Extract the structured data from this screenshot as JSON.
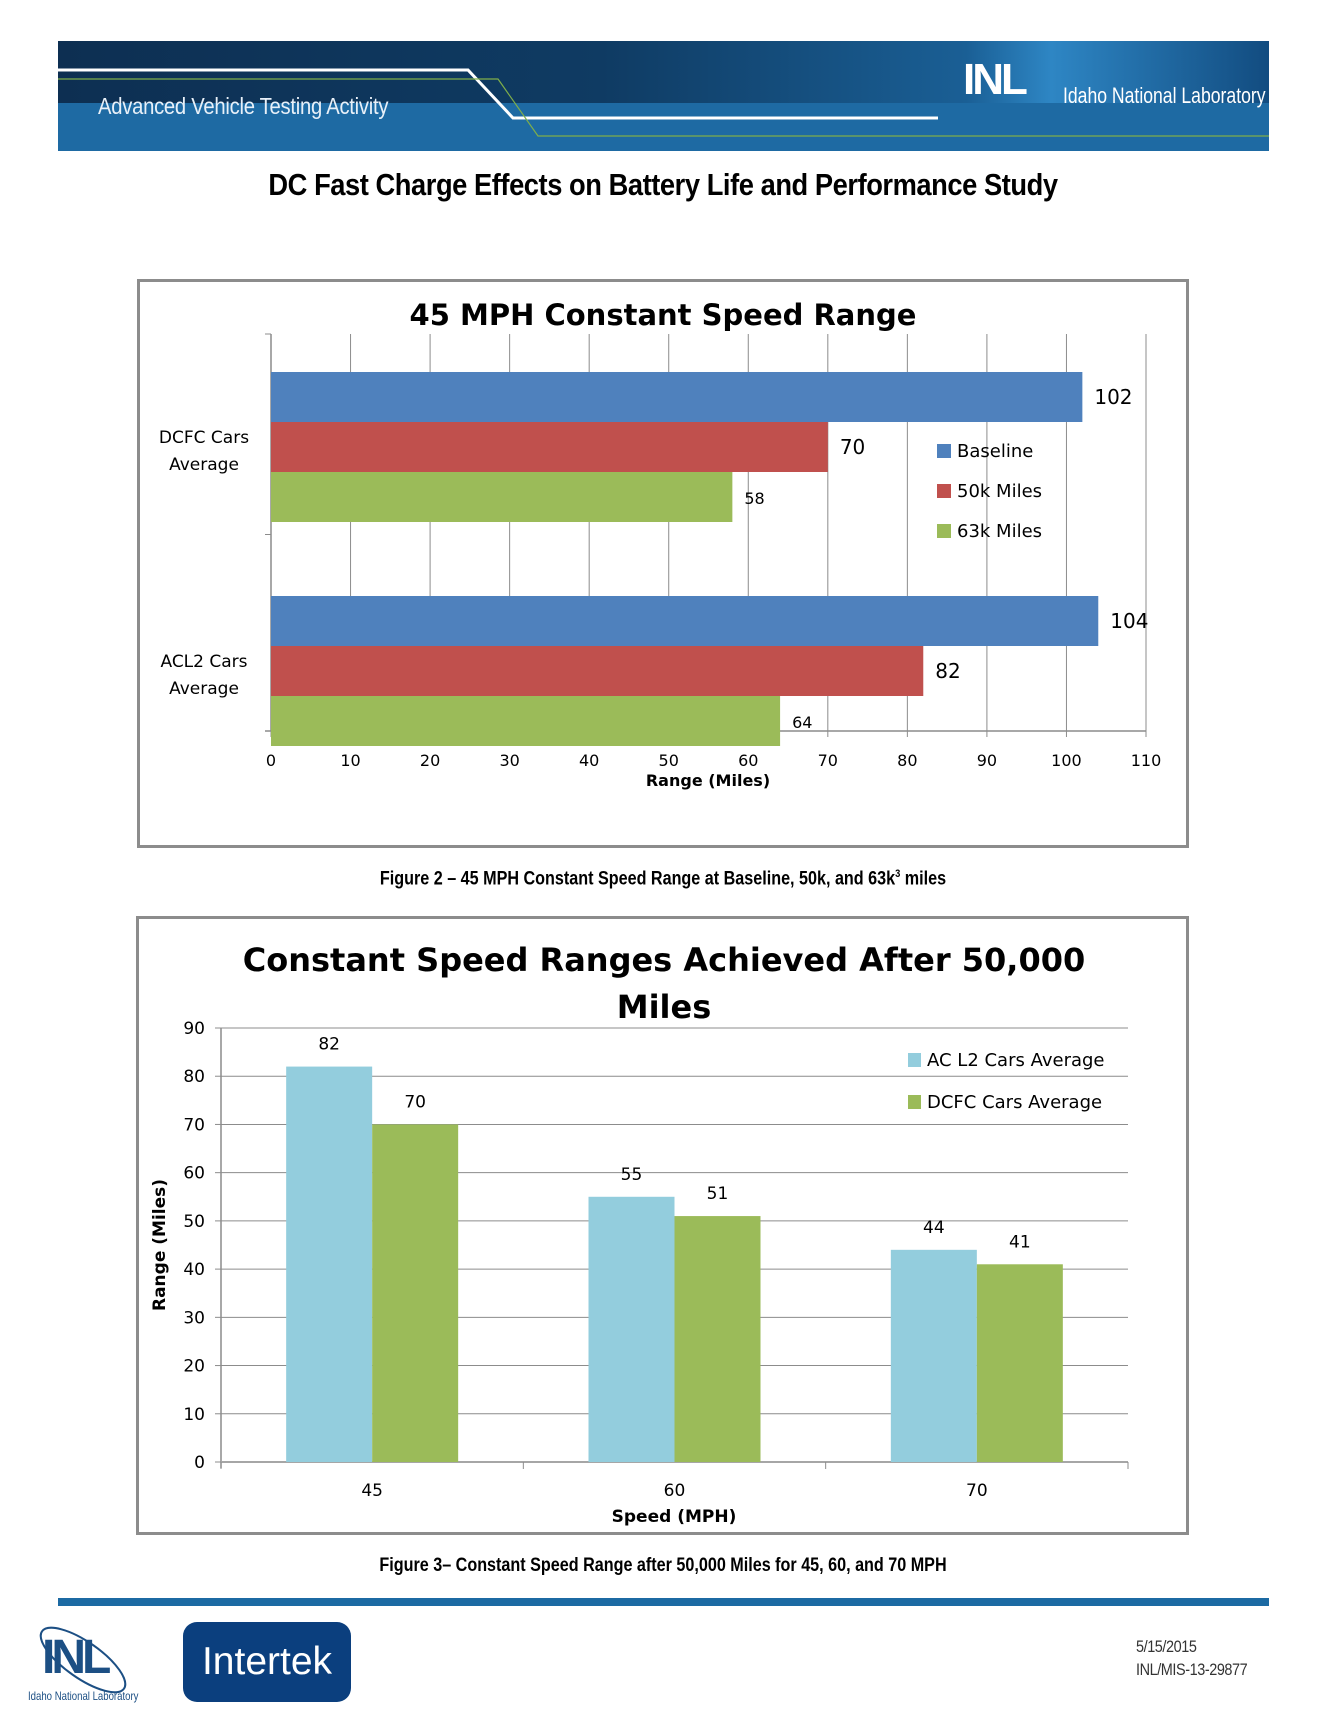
{
  "header": {
    "program": "Advanced Vehicle Testing Activity",
    "logo_text": "INL",
    "org": "Idaho National Laboratory"
  },
  "document_title": "DC Fast Charge Effects on Battery Life and Performance Study",
  "chart_data": [
    {
      "type": "bar",
      "orientation": "horizontal",
      "title": "45 MPH Constant Speed Range",
      "xlabel": "Range (Miles)",
      "ylabel": "",
      "categories": [
        "DCFC Cars Average",
        "ACL2 Cars Average"
      ],
      "category_lines": [
        [
          "DCFC Cars",
          "Average"
        ],
        [
          "ACL2 Cars",
          "Average"
        ]
      ],
      "series": [
        {
          "name": "Baseline",
          "color": "#4f81bd",
          "values": [
            102,
            104
          ]
        },
        {
          "name": "50k Miles",
          "color": "#c0504d",
          "values": [
            70,
            82
          ]
        },
        {
          "name": "63k Miles",
          "color": "#9bbb59",
          "values": [
            58,
            64
          ]
        }
      ],
      "xlim": [
        0,
        110
      ],
      "xticks": [
        0,
        10,
        20,
        30,
        40,
        50,
        60,
        70,
        80,
        90,
        100,
        110
      ],
      "grid": true,
      "legend": "right"
    },
    {
      "type": "bar",
      "orientation": "vertical",
      "title_lines": [
        "Constant Speed Ranges Achieved After 50,000",
        "Miles"
      ],
      "title": "Constant Speed Ranges Achieved After 50,000 Miles",
      "xlabel": "Speed (MPH)",
      "ylabel": "Range (Miles)",
      "categories": [
        "45",
        "60",
        "70"
      ],
      "series": [
        {
          "name": "AC L2 Cars Average",
          "color": "#93cddd",
          "values": [
            82,
            55,
            44
          ]
        },
        {
          "name": "DCFC Cars Average",
          "color": "#9bbb59",
          "values": [
            70,
            51,
            41
          ]
        }
      ],
      "ylim": [
        0,
        90
      ],
      "yticks": [
        0,
        10,
        20,
        30,
        40,
        50,
        60,
        70,
        80,
        90
      ],
      "grid": true,
      "legend": "top-right"
    }
  ],
  "captions": {
    "figure2_main": "Figure 2 – 45 MPH Constant Speed Range at Baseline, 50k, and 63k",
    "figure2_sup": "3",
    "figure2_end": " miles",
    "figure3": "Figure 3– Constant Speed Range after 50,000 Miles for 45, 60, and 70 MPH"
  },
  "footer": {
    "logo_text": "INL",
    "logo_org": "Idaho National Laboratory",
    "partner": "Intertek",
    "date": "5/15/2015",
    "doc_id": "INL/MIS-13-29877"
  }
}
